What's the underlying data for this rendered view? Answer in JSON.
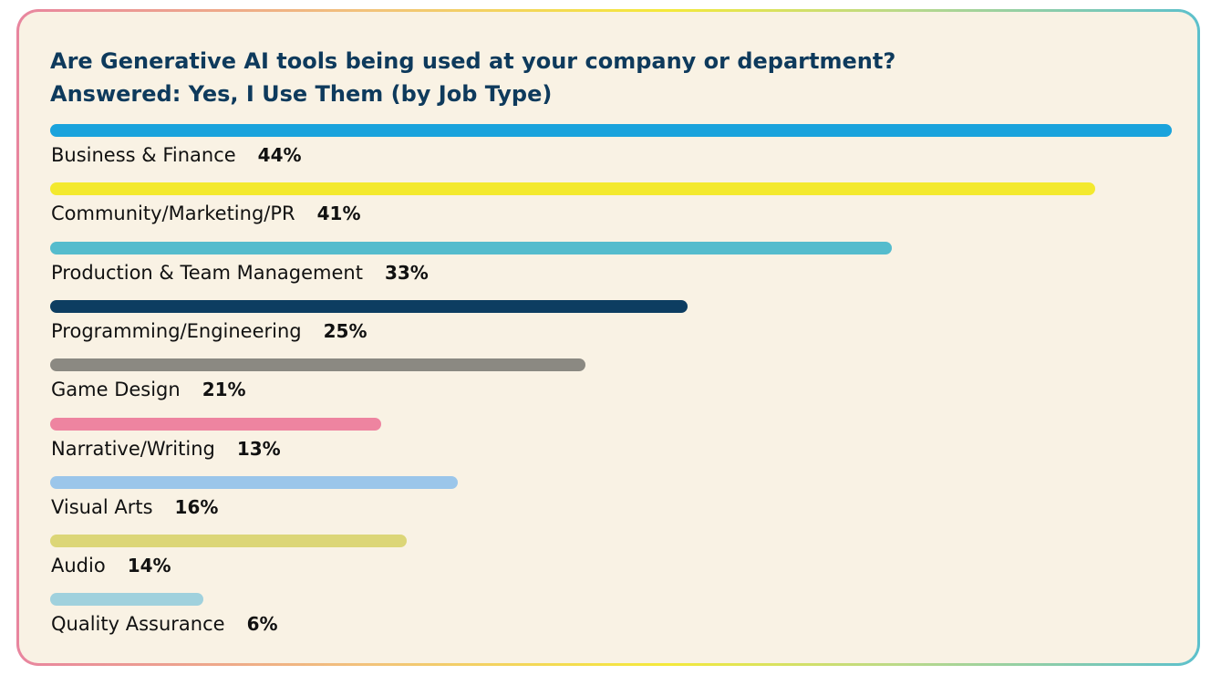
{
  "chart_data": {
    "type": "bar",
    "orientation": "horizontal",
    "title": "Are Generative AI tools being used at your company or department?",
    "subtitle": "Answered: Yes, I Use Them (by Job Type)",
    "categories": [
      "Business & Finance",
      "Community/Marketing/PR",
      "Production & Team Management",
      "Programming/Engineering",
      "Game Design",
      "Narrative/Writing",
      "Visual Arts",
      "Audio",
      "Quality Assurance"
    ],
    "values": [
      44,
      41,
      33,
      25,
      21,
      13,
      16,
      14,
      6
    ],
    "value_labels": [
      "44%",
      "41%",
      "33%",
      "25%",
      "21%",
      "13%",
      "16%",
      "14%",
      "6%"
    ],
    "colors": [
      "#1aa3dc",
      "#f3e92e",
      "#55bccd",
      "#0d3d61",
      "#8b8982",
      "#ee84a0",
      "#9bc6ea",
      "#dcd677",
      "#a0d1dd"
    ],
    "xlim": [
      0,
      44
    ],
    "grid": false,
    "legend": "none"
  }
}
